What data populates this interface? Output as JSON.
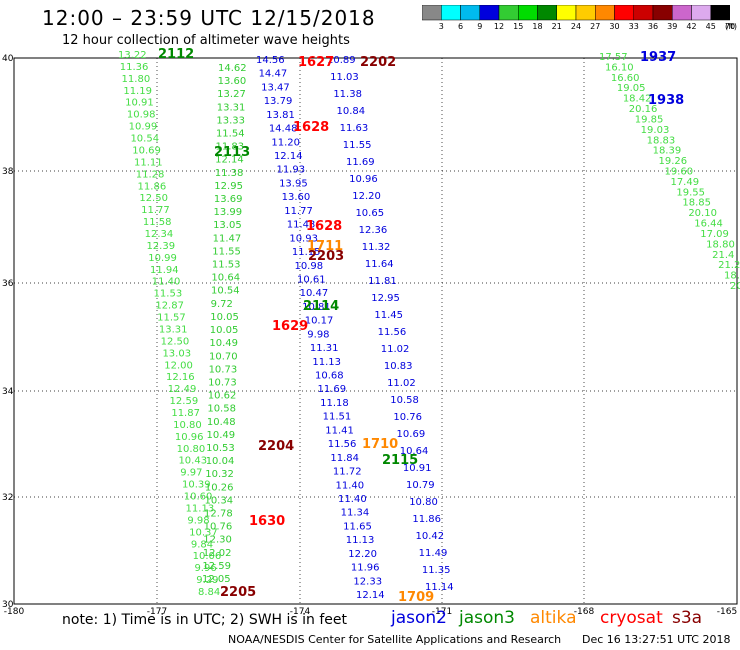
{
  "header": {
    "title": "12:00 – 23:59 UTC 12/15/2018",
    "subtitle": "12 hour collection of altimeter wave heights"
  },
  "legend": {
    "unit": "(ft)",
    "bins": [
      {
        "label": "3",
        "color": "#888888"
      },
      {
        "label": "6",
        "color": "#00ffff"
      },
      {
        "label": "9",
        "color": "#00bbee"
      },
      {
        "label": "12",
        "color": "#0000dd"
      },
      {
        "label": "15",
        "color": "#33cc33"
      },
      {
        "label": "18",
        "color": "#00dd00"
      },
      {
        "label": "21",
        "color": "#008800"
      },
      {
        "label": "24",
        "color": "#ffff00"
      },
      {
        "label": "27",
        "color": "#ffcc00"
      },
      {
        "label": "30",
        "color": "#ff8800"
      },
      {
        "label": "33",
        "color": "#ff0000"
      },
      {
        "label": "36",
        "color": "#cc0000"
      },
      {
        "label": "39",
        "color": "#880000"
      },
      {
        "label": "42",
        "color": "#cc66cc"
      },
      {
        "label": "45",
        "color": "#ddaaee"
      },
      {
        "label": "70",
        "color": "#000000"
      }
    ]
  },
  "axes": {
    "lat_labels": [
      "40",
      "38",
      "36",
      "34",
      "32",
      "30"
    ],
    "lon_labels": [
      "-180",
      "-177",
      "-174",
      "-171",
      "-168",
      "-165"
    ]
  },
  "tracks": [
    {
      "color": "#44dd44",
      "values": [
        "13.22",
        "11.36",
        "11.80",
        "11.19",
        "10.91",
        "10.98",
        "10.99",
        "10.54",
        "10.69",
        "11.11",
        "11.28",
        "11.86",
        "12.50",
        "11.77",
        "11.58",
        "12.34",
        "12.39",
        "10.99",
        "11.94",
        "11.40",
        "11.53",
        "12.87",
        "11.57",
        "13.31",
        "12.50",
        "13.03",
        "12.00",
        "12.16",
        "12.49",
        "12.59",
        "11.87",
        "10.80",
        "10.96",
        "10.80",
        "10.43",
        "9.97",
        "10.39",
        "10.60",
        "11.13",
        "9.98",
        "10.37",
        "9.84",
        "10.06",
        "9.96",
        "9.29",
        "8.84"
      ]
    },
    {
      "color": "#33cc33",
      "values": [
        "14.62",
        "13.60",
        "13.27",
        "13.31",
        "13.33",
        "11.54",
        "11.83",
        "12.14",
        "11.38",
        "12.95",
        "13.69",
        "13.99",
        "13.05",
        "11.47",
        "11.55",
        "11.53",
        "10.64",
        "10.54",
        "9.72",
        "10.05",
        "10.05",
        "10.49",
        "10.70",
        "10.73",
        "10.73",
        "10.62",
        "10.58",
        "10.48",
        "10.49",
        "10.53",
        "10.04",
        "10.32",
        "10.26",
        "10.34",
        "12.78",
        "10.76",
        "12.30",
        "12.02",
        "12.59",
        "12.05"
      ]
    },
    {
      "color": "#0000dd",
      "values": [
        "14.56",
        "14.47",
        "13.47",
        "13.79",
        "13.81",
        "14.48",
        "11.20",
        "12.14",
        "11.93",
        "13.95",
        "13.60",
        "11.77",
        "11.43",
        "10.93",
        "11.15",
        "10.98",
        "10.61",
        "10.47",
        "10.81",
        "10.17",
        "9.98",
        "11.31",
        "11.13",
        "10.68",
        "11.69",
        "11.18",
        "11.51",
        "11.41",
        "11.56",
        "11.84",
        "11.72",
        "11.40",
        "11.40",
        "11.34",
        "11.65",
        "11.13",
        "12.20",
        "11.96",
        "12.33",
        "12.14"
      ]
    },
    {
      "color": "#0000dd",
      "values": [
        "10.89",
        "11.03",
        "11.38",
        "10.84",
        "11.63",
        "11.55",
        "11.69",
        "10.96",
        "12.20",
        "10.65",
        "12.36",
        "11.32",
        "11.64",
        "11.81",
        "12.95",
        "11.45",
        "11.56",
        "11.02",
        "10.83",
        "11.02",
        "10.58",
        "10.76",
        "10.69",
        "10.64",
        "10.91",
        "10.79",
        "10.80",
        "11.86",
        "10.42",
        "11.49",
        "11.35",
        "11.14"
      ]
    },
    {
      "color": "#44dd44",
      "values": [
        "17.57",
        "16.10",
        "16.60",
        "19.05",
        "18.42",
        "20.16",
        "19.85",
        "19.03",
        "18.83",
        "18.39",
        "19.26",
        "19.60",
        "17.49",
        "19.55",
        "18.85",
        "20.10",
        "16.44",
        "17.09",
        "18.80",
        "21.4",
        "21.2",
        "18.",
        "20"
      ]
    }
  ],
  "passes": [
    {
      "label": "2112",
      "color": "#008800"
    },
    {
      "label": "2113",
      "color": "#008800"
    },
    {
      "label": "2114",
      "color": "#008800"
    },
    {
      "label": "2115",
      "color": "#008800"
    },
    {
      "label": "1627",
      "color": "#ff0000"
    },
    {
      "label": "1628",
      "color": "#ff0000"
    },
    {
      "label": "1628",
      "color": "#ff0000"
    },
    {
      "label": "1629",
      "color": "#ff0000"
    },
    {
      "label": "1630",
      "color": "#ff0000"
    },
    {
      "label": "2202",
      "color": "#880000"
    },
    {
      "label": "2203",
      "color": "#880000"
    },
    {
      "label": "2204",
      "color": "#880000"
    },
    {
      "label": "2205",
      "color": "#880000"
    },
    {
      "label": "1711",
      "color": "#ff8800"
    },
    {
      "label": "1710",
      "color": "#ff8800"
    },
    {
      "label": "1709",
      "color": "#ff8800"
    },
    {
      "label": "1937",
      "color": "#0000dd"
    },
    {
      "label": "1938",
      "color": "#0000dd"
    }
  ],
  "footer": {
    "note": "note: 1) Time is in UTC; 2) SWH is in feet",
    "satellites": [
      {
        "name": "jason2",
        "color": "#0000dd"
      },
      {
        "name": "jason3",
        "color": "#008800"
      },
      {
        "name": "altika",
        "color": "#ff8800"
      },
      {
        "name": "cryosat",
        "color": "#ff0000"
      },
      {
        "name": "s3a",
        "color": "#880000"
      }
    ],
    "credit": "NOAA/NESDIS Center for Satellite Applications and Research",
    "timestamp": "Dec 16 13:27:51 UTC 2018"
  }
}
